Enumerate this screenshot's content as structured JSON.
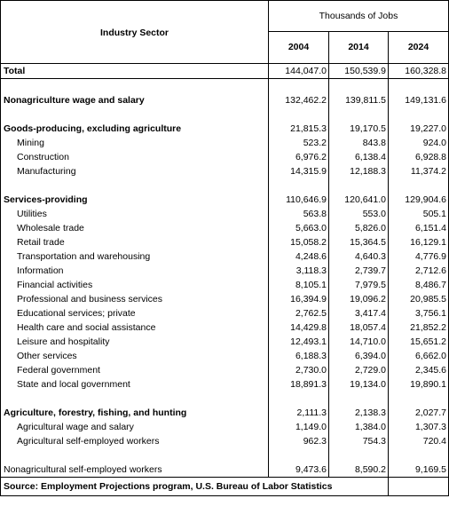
{
  "header": {
    "sector_label": "Industry Sector",
    "thousands_label": "Thousands of Jobs",
    "years": [
      "2004",
      "2014",
      "2024"
    ]
  },
  "rows": {
    "total": {
      "label": "Total",
      "v": [
        "144,047.0",
        "150,539.9",
        "160,328.8"
      ]
    },
    "nonag": {
      "label": "Nonagriculture wage and salary",
      "v": [
        "132,462.2",
        "139,811.5",
        "149,131.6"
      ]
    },
    "goods": {
      "label": "Goods-producing, excluding agriculture",
      "v": [
        "21,815.3",
        "19,170.5",
        "19,227.0"
      ]
    },
    "mining": {
      "label": "Mining",
      "v": [
        "523.2",
        "843.8",
        "924.0"
      ]
    },
    "construction": {
      "label": "Construction",
      "v": [
        "6,976.2",
        "6,138.4",
        "6,928.8"
      ]
    },
    "manufacturing": {
      "label": "Manufacturing",
      "v": [
        "14,315.9",
        "12,188.3",
        "11,374.2"
      ]
    },
    "services": {
      "label": "Services-providing",
      "v": [
        "110,646.9",
        "120,641.0",
        "129,904.6"
      ]
    },
    "utilities": {
      "label": "Utilities",
      "v": [
        "563.8",
        "553.0",
        "505.1"
      ]
    },
    "wholesale": {
      "label": "Wholesale trade",
      "v": [
        "5,663.0",
        "5,826.0",
        "6,151.4"
      ]
    },
    "retail": {
      "label": "Retail trade",
      "v": [
        "15,058.2",
        "15,364.5",
        "16,129.1"
      ]
    },
    "transport": {
      "label": "Transportation and warehousing",
      "v": [
        "4,248.6",
        "4,640.3",
        "4,776.9"
      ]
    },
    "information": {
      "label": "Information",
      "v": [
        "3,118.3",
        "2,739.7",
        "2,712.6"
      ]
    },
    "financial": {
      "label": "Financial activities",
      "v": [
        "8,105.1",
        "7,979.5",
        "8,486.7"
      ]
    },
    "professional": {
      "label": "Professional and business services",
      "v": [
        "16,394.9",
        "19,096.2",
        "20,985.5"
      ]
    },
    "educational": {
      "label": "Educational services; private",
      "v": [
        "2,762.5",
        "3,417.4",
        "3,756.1"
      ]
    },
    "health": {
      "label": "Health care and social assistance",
      "v": [
        "14,429.8",
        "18,057.4",
        "21,852.2"
      ]
    },
    "leisure": {
      "label": "Leisure and hospitality",
      "v": [
        "12,493.1",
        "14,710.0",
        "15,651.2"
      ]
    },
    "other": {
      "label": "Other services",
      "v": [
        "6,188.3",
        "6,394.0",
        "6,662.0"
      ]
    },
    "federal": {
      "label": "Federal government",
      "v": [
        "2,730.0",
        "2,729.0",
        "2,345.6"
      ]
    },
    "statelocal": {
      "label": "State and local government",
      "v": [
        "18,891.3",
        "19,134.0",
        "19,890.1"
      ]
    },
    "agriculture": {
      "label": "Agriculture, forestry, fishing, and hunting",
      "v": [
        "2,111.3",
        "2,138.3",
        "2,027.7"
      ]
    },
    "agwage": {
      "label": "Agricultural wage and salary",
      "v": [
        "1,149.0",
        "1,384.0",
        "1,307.3"
      ]
    },
    "agself": {
      "label": "Agricultural self-employed workers",
      "v": [
        "962.3",
        "754.3",
        "720.4"
      ]
    },
    "nonagself": {
      "label": "Nonagricultural self-employed workers",
      "v": [
        "9,473.6",
        "8,590.2",
        "9,169.5"
      ]
    }
  },
  "source": "Source: Employment Projections program, U.S. Bureau of Labor Statistics"
}
